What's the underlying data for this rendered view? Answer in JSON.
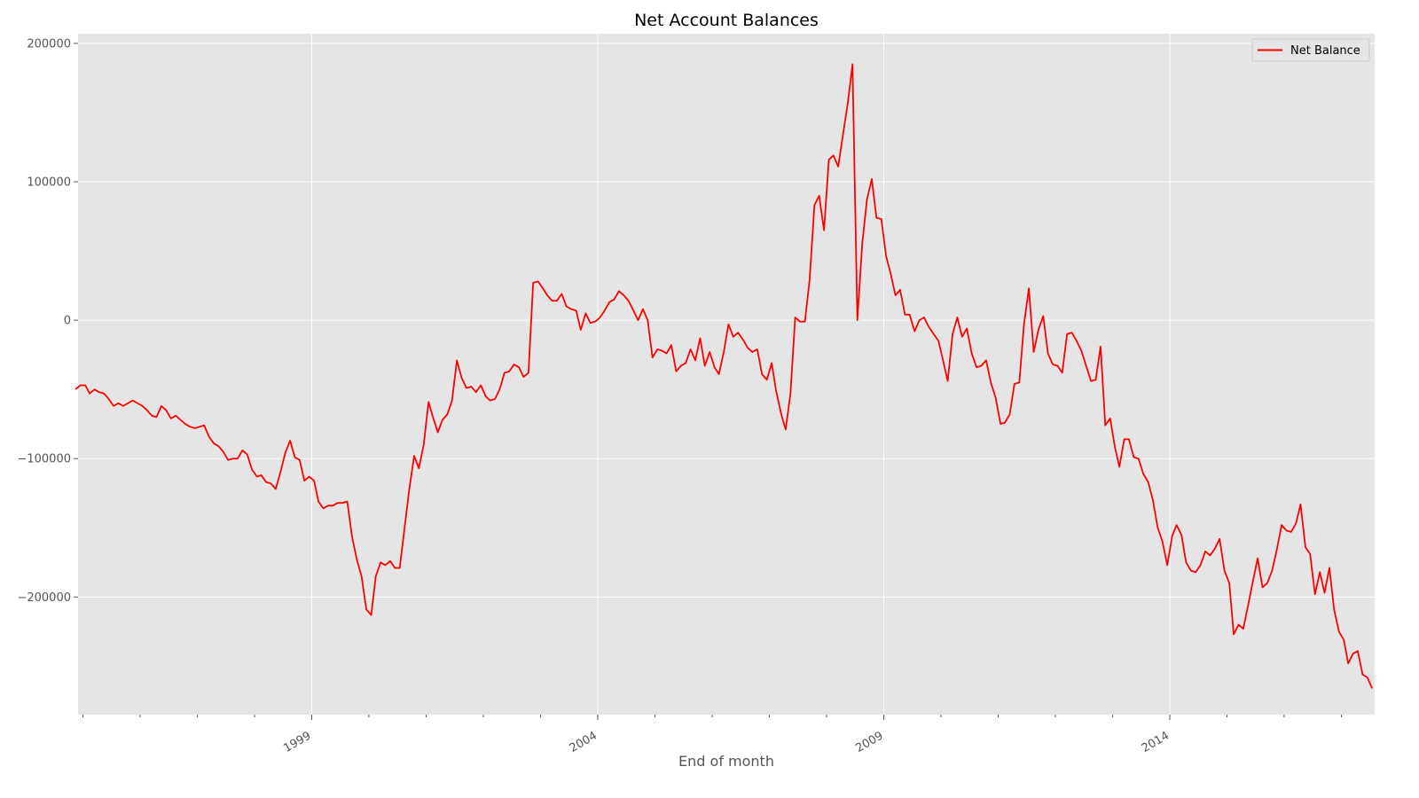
{
  "chart_data": {
    "type": "line",
    "title": "Net Account Balances",
    "xlabel": "End of month",
    "ylabel": "",
    "x_start": "1994-12-31",
    "x_end": "2017-08-31",
    "xlim": [
      "1994-12-31",
      "2017-08-31"
    ],
    "ylim": [
      -285000,
      207000
    ],
    "x_ticks": [
      "1999-01-31",
      "2004-01-31",
      "2009-01-31",
      "2014-01-31"
    ],
    "x_tick_labels": [
      "1999",
      "2004",
      "2009",
      "2014"
    ],
    "y_ticks": [
      -200000,
      -100000,
      0,
      100000,
      200000
    ],
    "y_tick_labels": [
      "−200000",
      "−100000",
      "0",
      "100000",
      "200000"
    ],
    "grid": true,
    "legend_position": "top-right",
    "colors": {
      "plot_bg": "#e5e5e5",
      "grid": "#ffffff",
      "line": "#ff0000",
      "text": "#555555"
    },
    "series": [
      {
        "name": "Net Balance",
        "color": "#ff0000",
        "values": [
          -50000,
          -47000,
          -47000,
          -53000,
          -50000,
          -52000,
          -53000,
          -57000,
          -62000,
          -60000,
          -62000,
          -60000,
          -58000,
          -60000,
          -62000,
          -65000,
          -69000,
          -70000,
          -62000,
          -65000,
          -71000,
          -69000,
          -72000,
          -75000,
          -77000,
          -78000,
          -77000,
          -76000,
          -84000,
          -89000,
          -91000,
          -95000,
          -101000,
          -100000,
          -100000,
          -94000,
          -97000,
          -108000,
          -113000,
          -112000,
          -117000,
          -118000,
          -122000,
          -110000,
          -96000,
          -87000,
          -99000,
          -101000,
          -116000,
          -113000,
          -116000,
          -131000,
          -136000,
          -134000,
          -134000,
          -132000,
          -132000,
          -131000,
          -156000,
          -173000,
          -185000,
          -209000,
          -213000,
          -185000,
          -175000,
          -177000,
          -174000,
          -179000,
          -179000,
          -150000,
          -122000,
          -98000,
          -107000,
          -90000,
          -59000,
          -70000,
          -81000,
          -72000,
          -68000,
          -58000,
          -29000,
          -42000,
          -49000,
          -48000,
          -52000,
          -47000,
          -55000,
          -58000,
          -57000,
          -50000,
          -38000,
          -37000,
          -32000,
          -34000,
          -41000,
          -38000,
          27000,
          28000,
          23000,
          18000,
          14000,
          14000,
          19000,
          10000,
          8000,
          7000,
          -7000,
          5000,
          -2000,
          -1000,
          2000,
          7000,
          13000,
          15000,
          21000,
          18000,
          14000,
          7000,
          0,
          8000,
          0,
          -27000,
          -21000,
          -22000,
          -24000,
          -18000,
          -37000,
          -33000,
          -31000,
          -21000,
          -29000,
          -13000,
          -33000,
          -23000,
          -34000,
          -39000,
          -23000,
          -3000,
          -12000,
          -9000,
          -14000,
          -20000,
          -23000,
          -21000,
          -39000,
          -43000,
          -31000,
          -51000,
          -67000,
          -79000,
          -53000,
          2000,
          -1000,
          -1000,
          29000,
          83000,
          90000,
          65000,
          116000,
          119000,
          111000,
          134000,
          157000,
          185000,
          0,
          55000,
          87000,
          102000,
          74000,
          73000,
          46000,
          34000,
          18000,
          22000,
          4000,
          4000,
          -8000,
          0,
          2000,
          -5000,
          -10000,
          -15000,
          -30000,
          -44000,
          -10000,
          2000,
          -12000,
          -6000,
          -24000,
          -34000,
          -33000,
          -29000,
          -45000,
          -56000,
          -75000,
          -74000,
          -68000,
          -46000,
          -45000,
          -3000,
          23000,
          -23000,
          -7000,
          3000,
          -24000,
          -32000,
          -33000,
          -38000,
          -10000,
          -9000,
          -15000,
          -22000,
          -33000,
          -44000,
          -43000,
          -19000,
          -76000,
          -71000,
          -92000,
          -106000,
          -86000,
          -86000,
          -99000,
          -100000,
          -111000,
          -117000,
          -130000,
          -150000,
          -160000,
          -177000,
          -156000,
          -148000,
          -155000,
          -175000,
          -181000,
          -182000,
          -177000,
          -167000,
          -170000,
          -165000,
          -158000,
          -181000,
          -190000,
          -227000,
          -220000,
          -223000,
          -206000,
          -189000,
          -172000,
          -193000,
          -190000,
          -181000,
          -166000,
          -148000,
          -152000,
          -153000,
          -147000,
          -133000,
          -164000,
          -169000,
          -198000,
          -182000,
          -197000,
          -179000,
          -209000,
          -225000,
          -231000,
          -248000,
          -241000,
          -239000,
          -256000,
          -258000,
          -266000
        ]
      }
    ]
  }
}
